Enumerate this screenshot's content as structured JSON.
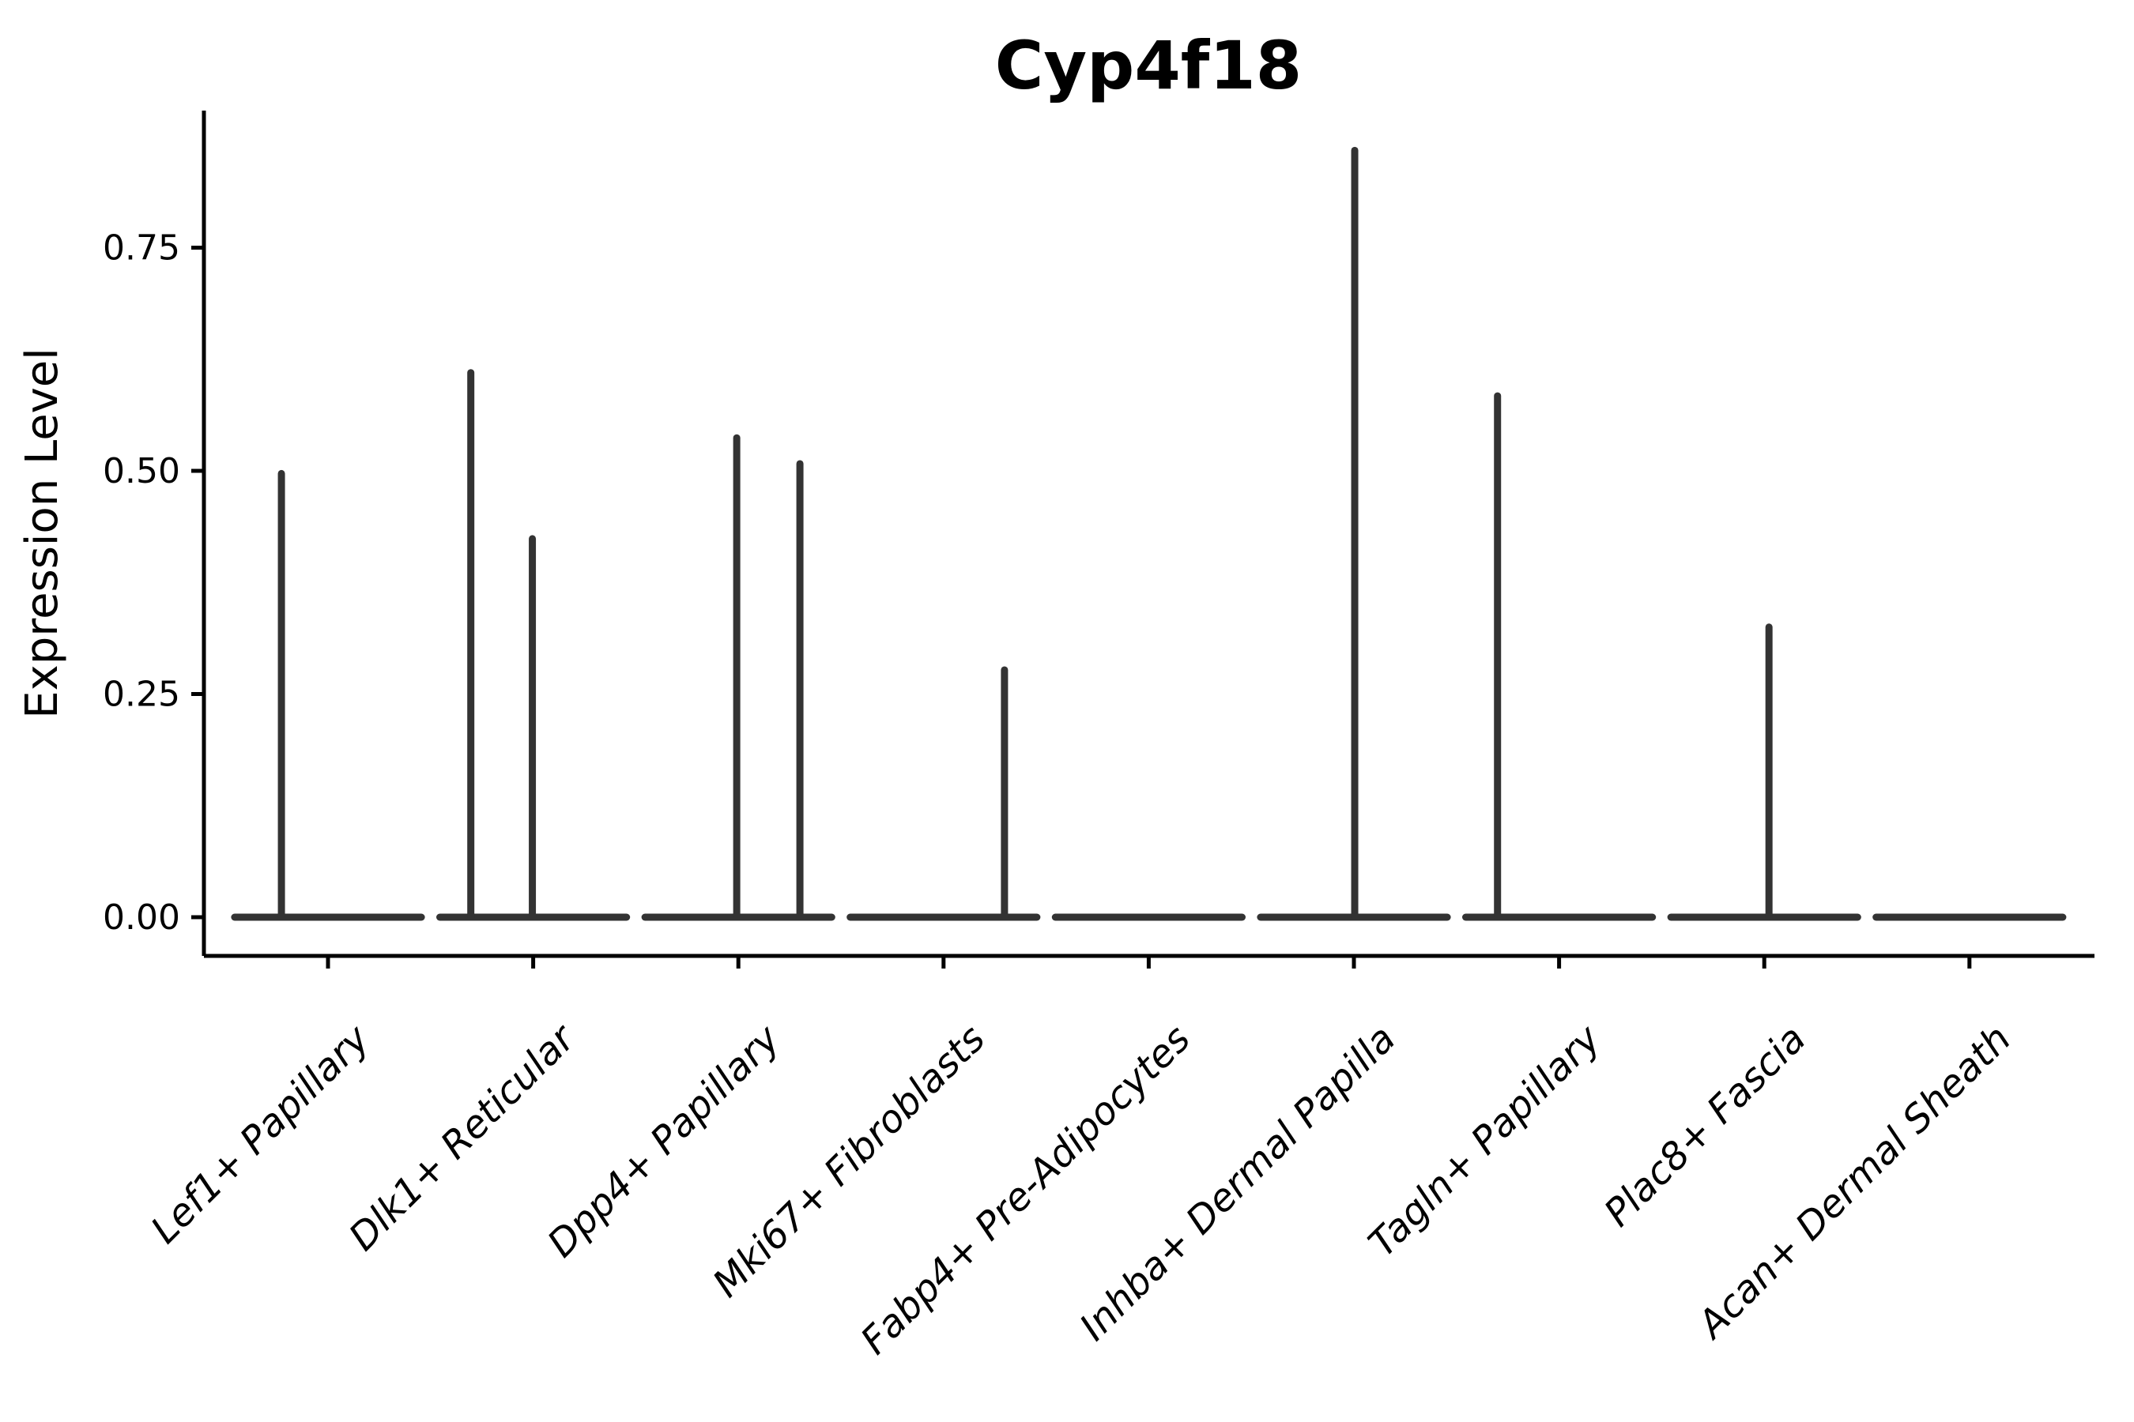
{
  "figure": {
    "background_color": "#ffffff"
  },
  "chart_data": {
    "type": "violin",
    "title": "Cyp4f18",
    "xlabel": "",
    "ylabel": "Expression Level",
    "ylim": [
      -0.043,
      0.904
    ],
    "grid": false,
    "legend": "none",
    "yticks": [
      0,
      0.25,
      0.5,
      0.75
    ],
    "ytick_labels": [
      "0.00",
      "0.25",
      "0.50",
      "0.75"
    ],
    "categories": [
      "Lef1+ Papillary",
      "Dlk1+ Reticular",
      "Dpp4+ Papillary",
      "Mki67+ Fibroblasts",
      "Fabp4+ Pre-Adipocytes",
      "Inhba+ Dermal Papilla",
      "Tagln+ Papillary",
      "Plac8+ Fascia",
      "Acan+ Dermal Sheath"
    ],
    "violins": [
      {
        "category": "Lef1+ Papillary",
        "baseline_value": 0,
        "body_width_frac": 0.91,
        "spikes": [
          {
            "offset_frac": -0.227,
            "peak_value": 0.497
          }
        ]
      },
      {
        "category": "Dlk1+ Reticular",
        "baseline_value": 0,
        "body_width_frac": 0.91,
        "spikes": [
          {
            "offset_frac": -0.304,
            "peak_value": 0.61
          },
          {
            "offset_frac": -0.004,
            "peak_value": 0.424
          }
        ]
      },
      {
        "category": "Dpp4+ Papillary",
        "baseline_value": 0,
        "body_width_frac": 0.91,
        "spikes": [
          {
            "offset_frac": -0.008,
            "peak_value": 0.537
          },
          {
            "offset_frac": 0.3,
            "peak_value": 0.508
          }
        ]
      },
      {
        "category": "Mki67+ Fibroblasts",
        "baseline_value": 0,
        "body_width_frac": 0.91,
        "spikes": [
          {
            "offset_frac": 0.297,
            "peak_value": 0.277
          }
        ]
      },
      {
        "category": "Fabp4+ Pre-Adipocytes",
        "baseline_value": 0,
        "body_width_frac": 0.91,
        "spikes": []
      },
      {
        "category": "Inhba+ Dermal Papilla",
        "baseline_value": 0,
        "body_width_frac": 0.91,
        "spikes": [
          {
            "offset_frac": 0.004,
            "peak_value": 0.859
          }
        ]
      },
      {
        "category": "Tagln+ Papillary",
        "baseline_value": 0,
        "body_width_frac": 0.91,
        "spikes": [
          {
            "offset_frac": -0.3,
            "peak_value": 0.584
          }
        ]
      },
      {
        "category": "Plac8+ Fascia",
        "baseline_value": 0,
        "body_width_frac": 0.91,
        "spikes": [
          {
            "offset_frac": 0.023,
            "peak_value": 0.325
          }
        ]
      },
      {
        "category": "Acan+ Dermal Sheath",
        "baseline_value": 0,
        "body_width_frac": 0.91,
        "spikes": []
      }
    ],
    "colors": {
      "violin_stroke": "#333333",
      "axis": "#000000",
      "text": "#000000",
      "background": "#ffffff"
    },
    "style": {
      "x_label_rotation_deg": 45,
      "x_label_style": "italic",
      "title_weight": "bold"
    }
  }
}
